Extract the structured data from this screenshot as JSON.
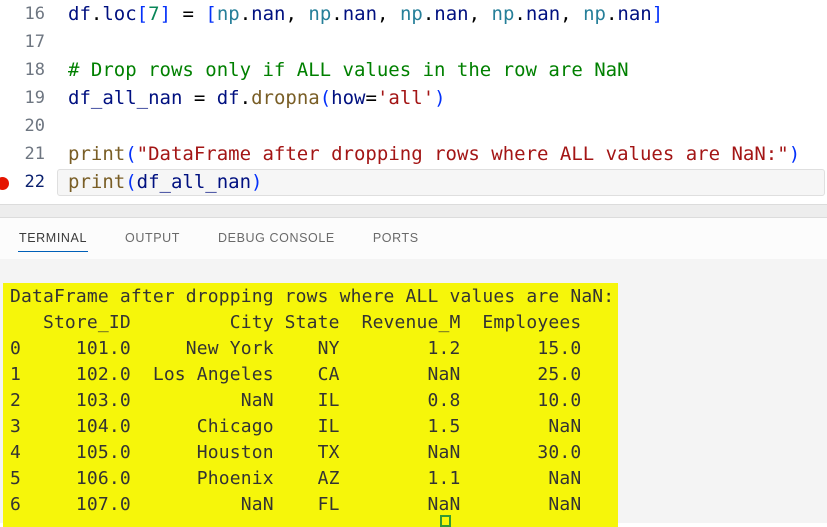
{
  "colors": {
    "accent_blue": "#005fb8",
    "breakpoint_red": "#e51400",
    "selection_yellow": "#f6f60a",
    "terminal_text": "#333333",
    "current_line_border": "#dfdfdf",
    "cursor_green": "#339933",
    "tokens": {
      "var": "#001080",
      "mod": "#267f99",
      "num": "#098658",
      "str": "#a31515",
      "com": "#008000",
      "fn": "#795e26",
      "pun": "#000000",
      "brk": "#0431fa"
    }
  },
  "editor": {
    "breakpoint_line": "22",
    "current_line": "22",
    "lines": [
      {
        "num": "16",
        "tokens": [
          [
            "df",
            "var"
          ],
          [
            ".",
            "pun"
          ],
          [
            "loc",
            "var"
          ],
          [
            "[",
            "brk"
          ],
          [
            "7",
            "num"
          ],
          [
            "]",
            "brk"
          ],
          [
            " = ",
            "pun"
          ],
          [
            "[",
            "brk"
          ],
          [
            "np",
            "mod"
          ],
          [
            ".",
            "pun"
          ],
          [
            "nan",
            "var"
          ],
          [
            ", ",
            "pun"
          ],
          [
            "np",
            "mod"
          ],
          [
            ".",
            "pun"
          ],
          [
            "nan",
            "var"
          ],
          [
            ", ",
            "pun"
          ],
          [
            "np",
            "mod"
          ],
          [
            ".",
            "pun"
          ],
          [
            "nan",
            "var"
          ],
          [
            ", ",
            "pun"
          ],
          [
            "np",
            "mod"
          ],
          [
            ".",
            "pun"
          ],
          [
            "nan",
            "var"
          ],
          [
            ", ",
            "pun"
          ],
          [
            "np",
            "mod"
          ],
          [
            ".",
            "pun"
          ],
          [
            "nan",
            "var"
          ],
          [
            "]",
            "brk"
          ]
        ]
      },
      {
        "num": "17",
        "tokens": []
      },
      {
        "num": "18",
        "tokens": [
          [
            "# Drop rows only if ALL values in the row are NaN",
            "com"
          ]
        ]
      },
      {
        "num": "19",
        "tokens": [
          [
            "df_all_nan",
            "var"
          ],
          [
            " = ",
            "pun"
          ],
          [
            "df",
            "var"
          ],
          [
            ".",
            "pun"
          ],
          [
            "dropna",
            "fn"
          ],
          [
            "(",
            "brk"
          ],
          [
            "how",
            "var"
          ],
          [
            "=",
            "pun"
          ],
          [
            "'all'",
            "str"
          ],
          [
            ")",
            "brk"
          ]
        ]
      },
      {
        "num": "20",
        "tokens": []
      },
      {
        "num": "21",
        "tokens": [
          [
            "print",
            "fn"
          ],
          [
            "(",
            "brk"
          ],
          [
            "\"DataFrame after dropping rows where ALL values are NaN:\"",
            "str"
          ],
          [
            ")",
            "brk"
          ]
        ]
      },
      {
        "num": "22",
        "tokens": [
          [
            "print",
            "fn"
          ],
          [
            "(",
            "brk"
          ],
          [
            "df_all_nan",
            "var"
          ],
          [
            ")",
            "brk"
          ]
        ]
      }
    ]
  },
  "panel": {
    "tabs": [
      {
        "label": "TERMINAL",
        "active": true
      },
      {
        "label": "OUTPUT",
        "active": false
      },
      {
        "label": "DEBUG CONSOLE",
        "active": false
      },
      {
        "label": "PORTS",
        "active": false
      }
    ]
  },
  "terminal": {
    "lines": [
      "DataFrame after dropping rows where ALL values are NaN:",
      "   Store_ID         City State  Revenue_M  Employees",
      "0     101.0     New York    NY        1.2       15.0",
      "1     102.0  Los Angeles    CA        NaN       25.0",
      "2     103.0          NaN    IL        0.8       10.0",
      "3     104.0      Chicago    IL        1.5        NaN",
      "4     105.0      Houston    TX        NaN       30.0",
      "5     106.0      Phoenix    AZ        1.1        NaN",
      "6     107.0          NaN    FL        NaN        NaN"
    ],
    "dataframe": {
      "columns": [
        "Store_ID",
        "City",
        "State",
        "Revenue_M",
        "Employees"
      ],
      "index": [
        "0",
        "1",
        "2",
        "3",
        "4",
        "5",
        "6"
      ],
      "rows": [
        [
          "101.0",
          "New York",
          "NY",
          "1.2",
          "15.0"
        ],
        [
          "102.0",
          "Los Angeles",
          "CA",
          "NaN",
          "25.0"
        ],
        [
          "103.0",
          "NaN",
          "IL",
          "0.8",
          "10.0"
        ],
        [
          "104.0",
          "Chicago",
          "IL",
          "1.5",
          "NaN"
        ],
        [
          "105.0",
          "Houston",
          "TX",
          "NaN",
          "30.0"
        ],
        [
          "106.0",
          "Phoenix",
          "AZ",
          "1.1",
          "NaN"
        ],
        [
          "107.0",
          "NaN",
          "FL",
          "NaN",
          "NaN"
        ]
      ]
    }
  }
}
